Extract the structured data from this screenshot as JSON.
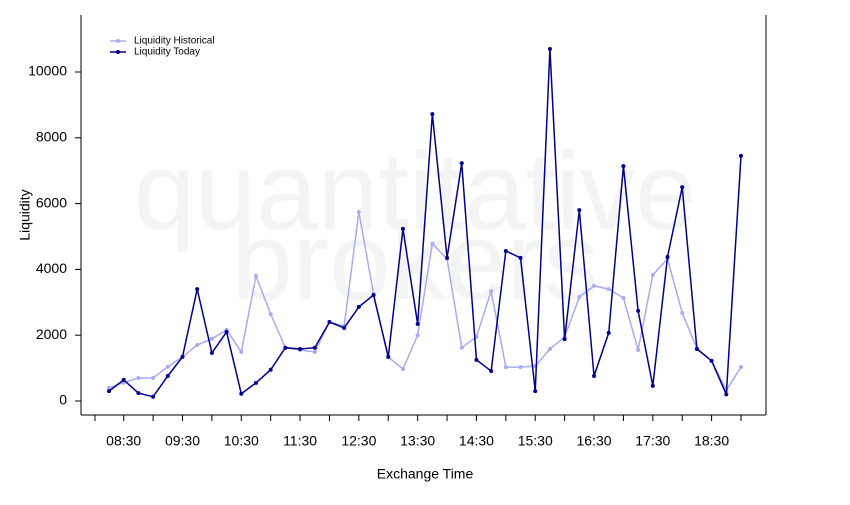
{
  "chart_data": {
    "type": "line",
    "watermark": [
      "quantitative",
      "brokers"
    ],
    "xlabel": "Exchange Time",
    "ylabel": "Liquidity",
    "categories": [
      null,
      "08:30",
      null,
      null,
      null,
      "09:30",
      null,
      null,
      null,
      "10:30",
      null,
      null,
      null,
      "11:30",
      null,
      null,
      null,
      "12:30",
      null,
      null,
      null,
      "13:30",
      null,
      null,
      null,
      "14:30",
      null,
      null,
      null,
      "15:30",
      null,
      null,
      null,
      "16:30",
      null,
      null,
      null,
      "17:30",
      null,
      null,
      null,
      "18:30",
      null,
      null
    ],
    "series": [
      {
        "name": "Liquidity Historical",
        "color": "#aaaaee",
        "values": [
          400,
          560,
          700,
          700,
          1040,
          1340,
          1700,
          1890,
          2160,
          1490,
          3800,
          2640,
          1620,
          1550,
          1490,
          2400,
          2280,
          5750,
          3250,
          1340,
          970,
          2000,
          4780,
          4320,
          1620,
          1950,
          3340,
          1030,
          1030,
          1060,
          1580,
          1950,
          3160,
          3500,
          3400,
          3130,
          1550,
          3830,
          4320,
          2680,
          1600,
          1220,
          330,
          1030
        ]
      },
      {
        "name": "Liquidity Today",
        "color": "#00008b",
        "values": [
          300,
          640,
          240,
          130,
          760,
          1340,
          3400,
          1460,
          2100,
          220,
          550,
          950,
          1620,
          1580,
          1620,
          2400,
          2220,
          2860,
          3220,
          1340,
          5230,
          2340,
          8720,
          4350,
          7230,
          1250,
          910,
          4560,
          4350,
          300,
          10700,
          1880,
          5800,
          760,
          2070,
          7140,
          2740,
          460,
          4380,
          6500,
          1580,
          1220,
          200,
          7450
        ]
      }
    ],
    "ylim": [
      -426,
      11733
    ],
    "yticks": [
      0,
      2000,
      4000,
      6000,
      8000,
      10000
    ],
    "legend": "top-left"
  }
}
